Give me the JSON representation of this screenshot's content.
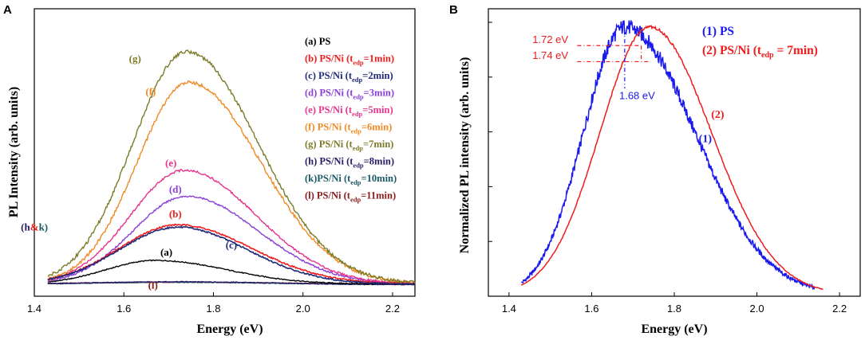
{
  "colors": {
    "a": "#000000",
    "b": "#ee1c1c",
    "c": "#1f2a7a",
    "d": "#8a3fd6",
    "e": "#e8338c",
    "f": "#f08a24",
    "g": "#7d7b2a",
    "h": "#2a1a66",
    "k": "#1a5a66",
    "l": "#8b1a1a",
    "blue": "#1a1aee",
    "red": "#ee1c1c"
  },
  "chart_data": [
    {
      "panel_label": "A",
      "type": "line",
      "xlabel": "Energy (eV)",
      "ylabel": "PL Intensity (arb. units)",
      "xlim": [
        1.4,
        2.25
      ],
      "ylim": [
        0,
        1.0
      ],
      "xticks": [
        "1.4",
        "1.6",
        "1.8",
        "2.0",
        "2.2"
      ],
      "xtick_values": [
        1.4,
        1.6,
        1.8,
        2.0,
        2.2
      ],
      "x_start": 1.43,
      "series": [
        {
          "key": "a",
          "name": "(a) PS",
          "label": "(a)",
          "peak": 0.1,
          "center": 1.67,
          "sl": 0.11,
          "sr": 0.16,
          "floor": 0.004,
          "label_x": 1.695,
          "label_y": 0.125
        },
        {
          "key": "b",
          "name": "(b) PS/Ni (tedp=1min)",
          "label": "(b)",
          "peak": 0.25,
          "center": 1.72,
          "sl": 0.13,
          "sr": 0.165,
          "floor": 0.004,
          "label_x": 1.715,
          "label_y": 0.285
        },
        {
          "key": "c",
          "name": "(c) PS/Ni (tedp=2min)",
          "label": "(c)",
          "peak": 0.24,
          "center": 1.72,
          "sl": 0.13,
          "sr": 0.155,
          "floor": 0.004,
          "label_x": 1.84,
          "label_y": 0.155
        },
        {
          "key": "d",
          "name": "(d) PS/Ni (tedp=3min)",
          "label": "(d)",
          "peak": 0.37,
          "center": 1.74,
          "sl": 0.12,
          "sr": 0.16,
          "floor": 0.004,
          "label_x": 1.715,
          "label_y": 0.39
        },
        {
          "key": "e",
          "name": "(e) PS/Ni (tedp=5min)",
          "label": "(e)",
          "peak": 0.48,
          "center": 1.735,
          "sl": 0.12,
          "sr": 0.16,
          "floor": 0.004,
          "label_x": 1.705,
          "label_y": 0.5
        },
        {
          "key": "f",
          "name": "(f) PS/Ni (tedp=6min)",
          "label": "(f)",
          "peak": 0.85,
          "center": 1.745,
          "sl": 0.115,
          "sr": 0.16,
          "floor": 0.004,
          "label_x": 1.66,
          "label_y": 0.8
        },
        {
          "key": "g",
          "name": "(g) PS/Ni (tedp=7min)",
          "label": "(g)",
          "peak": 0.98,
          "center": 1.74,
          "sl": 0.12,
          "sr": 0.16,
          "floor": 0.004,
          "label_x": 1.625,
          "label_y": 0.94
        },
        {
          "key": "h",
          "name": "(h) PS/Ni (tedp=8min)",
          "label": "",
          "peak": 0.012,
          "center": 1.72,
          "sl": 0.2,
          "sr": 0.2,
          "floor": 0.002,
          "label_x": 0,
          "label_y": 0
        },
        {
          "key": "k",
          "name": "(k)PS/Ni (tedp=10min)",
          "label": "",
          "peak": 0.01,
          "center": 1.72,
          "sl": 0.2,
          "sr": 0.2,
          "floor": 0.002,
          "label_x": 0,
          "label_y": 0
        },
        {
          "key": "l",
          "name": "(l) PS/Ni (tedp=11min)",
          "label": "(l)",
          "peak": 0.01,
          "center": 1.72,
          "sl": 0.25,
          "sr": 0.25,
          "floor": 0.002,
          "label_x": 1.665,
          "label_y": -0.015
        }
      ],
      "legend": [
        {
          "key": "a",
          "prefix": "(a) PS",
          "sub": "",
          "suffix": ""
        },
        {
          "key": "b",
          "prefix": "(b) PS/Ni (t",
          "sub": "edp",
          "suffix": "=1min)"
        },
        {
          "key": "c",
          "prefix": "(c) PS/Ni (t",
          "sub": "edp",
          "suffix": "=2min)"
        },
        {
          "key": "d",
          "prefix": "(d) PS/Ni (t",
          "sub": "edp",
          "suffix": "=3min)"
        },
        {
          "key": "e",
          "prefix": "(e) PS/Ni (t",
          "sub": "edp",
          "suffix": "=5min)"
        },
        {
          "key": "f",
          "prefix": "(f) PS/Ni (t",
          "sub": "edp",
          "suffix": "=6min)"
        },
        {
          "key": "g",
          "prefix": "(g) PS/Ni (t",
          "sub": "edp",
          "suffix": "=7min)"
        },
        {
          "key": "h",
          "prefix": "(h) PS/Ni (t",
          "sub": "edp",
          "suffix": "=8min)"
        },
        {
          "key": "k",
          "prefix": "(k)PS/Ni (t",
          "sub": "edp",
          "suffix": "=10min)"
        },
        {
          "key": "l",
          "prefix": "(l) PS/Ni (t",
          "sub": "edp",
          "suffix": "=11min)"
        }
      ],
      "hk_label": {
        "p1": "(h",
        "amp": "&",
        "p2": "k)",
        "x": 1.37,
        "y": 0.23
      }
    },
    {
      "panel_label": "B",
      "type": "line",
      "xlabel": "Energy (eV)",
      "ylabel": "Normalized PL intensity (arb. units)",
      "xlim": [
        1.35,
        2.25
      ],
      "ylim": [
        0,
        1.02
      ],
      "xticks": [
        "1.4",
        "1.6",
        "1.8",
        "2.0",
        "2.2"
      ],
      "xtick_values": [
        1.4,
        1.6,
        1.8,
        2.0,
        2.2
      ],
      "series": [
        {
          "key": "blue",
          "name": "(1) PS",
          "label": "(1)",
          "peak": 1.0,
          "center": 1.68,
          "sl": 0.1,
          "sr": 0.17,
          "x_start": 1.43,
          "x_end": 2.14,
          "label_x": 1.875,
          "label_y": 0.57
        },
        {
          "key": "red",
          "name": "(2) PS/Ni (tedp = 7min)",
          "label": "(2)",
          "peak": 1.0,
          "center": 1.74,
          "sl": 0.12,
          "sr": 0.15,
          "x_start": 1.43,
          "x_end": 2.16,
          "label_x": 1.905,
          "label_y": 0.66
        }
      ],
      "legend": [
        {
          "key": "blue",
          "prefix": "(1) PS",
          "sub": "",
          "suffix": ""
        },
        {
          "key": "red",
          "prefix": "(2) PS/Ni (t",
          "sub": "edp",
          "suffix": " = 7min)"
        }
      ],
      "annotations": [
        {
          "text": "1.72 eV",
          "x_from": 1.565,
          "x_to": 1.72,
          "y": 0.93,
          "drop_to": 0.87,
          "color": "red",
          "tx": 1.5,
          "ty": 0.94
        },
        {
          "text": "1.74 eV",
          "x_from": 1.565,
          "x_to": 1.74,
          "y": 0.87,
          "drop_to": 0.87,
          "color": "red",
          "tx": 1.5,
          "ty": 0.88
        },
        {
          "text": "1.68 eV",
          "x_from": 1.68,
          "x_to": 1.68,
          "y": 0.99,
          "drop_to": 0.77,
          "color": "blue",
          "tx": 1.71,
          "ty": 0.73
        }
      ]
    }
  ]
}
